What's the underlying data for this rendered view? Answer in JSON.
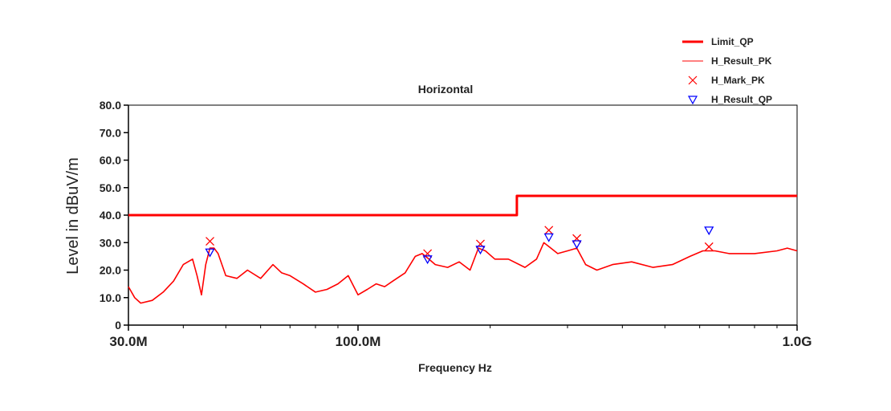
{
  "chart_data": {
    "type": "line",
    "title": "Horizontal",
    "xlabel": "Frequency Hz",
    "ylabel": "Level in dBuV/m",
    "xscale": "log",
    "xlim": [
      30000000,
      1000000000
    ],
    "ylim": [
      0,
      80
    ],
    "grid": true,
    "legend_position": "top-right",
    "x_tick_labels": [
      {
        "value": 30000000,
        "label": "30.0M"
      },
      {
        "value": 100000000,
        "label": "100.0M"
      },
      {
        "value": 1000000000,
        "label": "1.0G"
      }
    ],
    "y_tick_labels": [
      "0",
      "10.0",
      "20.0",
      "30.0",
      "40.0",
      "50.0",
      "60.0",
      "70.0",
      "80.0"
    ],
    "y_ticks": [
      0,
      10,
      20,
      30,
      40,
      50,
      60,
      70,
      80
    ],
    "series": [
      {
        "name": "Limit_QP",
        "style": "thick-line",
        "color": "#ff0000",
        "x": [
          30000000,
          230000000,
          230000000,
          1000000000
        ],
        "y": [
          40,
          40,
          47,
          47
        ]
      },
      {
        "name": "H_Result_PK",
        "style": "thin-line",
        "color": "#ff0000",
        "x": [
          30000000,
          31000000,
          32000000,
          34000000,
          36000000,
          38000000,
          40000000,
          42000000,
          43000000,
          44000000,
          45000000,
          46000000,
          47000000,
          48000000,
          50000000,
          53000000,
          56000000,
          60000000,
          64000000,
          67000000,
          70000000,
          75000000,
          80000000,
          85000000,
          90000000,
          95000000,
          100000000,
          105000000,
          110000000,
          115000000,
          120000000,
          128000000,
          135000000,
          140000000,
          145000000,
          150000000,
          160000000,
          170000000,
          180000000,
          188000000,
          195000000,
          205000000,
          220000000,
          240000000,
          255000000,
          265000000,
          275000000,
          285000000,
          300000000,
          315000000,
          330000000,
          350000000,
          380000000,
          420000000,
          470000000,
          520000000,
          570000000,
          610000000,
          650000000,
          700000000,
          800000000,
          900000000,
          950000000,
          1000000000
        ],
        "y": [
          14,
          10,
          8,
          9,
          12,
          16,
          22,
          24,
          18,
          11,
          22,
          28,
          28,
          26,
          18,
          17,
          20,
          17,
          22,
          19,
          18,
          15,
          12,
          13,
          15,
          18,
          11,
          13,
          15,
          14,
          16,
          19,
          25,
          26,
          24,
          22,
          21,
          23,
          20,
          28,
          27,
          24,
          24,
          21,
          24,
          30,
          28,
          26,
          27,
          28,
          22,
          20,
          22,
          23,
          21,
          22,
          25,
          27,
          27,
          26,
          26,
          27,
          28,
          27
        ]
      },
      {
        "name": "H_Mark_PK",
        "style": "x-marker",
        "color": "#ff0000",
        "x": [
          46000000,
          144000000,
          190000000,
          272000000,
          315000000,
          630000000
        ],
        "y": [
          30.5,
          26,
          29.5,
          34.5,
          31.5,
          28.5
        ]
      },
      {
        "name": "H_Result_QP",
        "style": "triangle-marker",
        "color": "#0000ff",
        "x": [
          46000000,
          144000000,
          190000000,
          272000000,
          315000000,
          630000000
        ],
        "y": [
          26.5,
          24,
          27.5,
          32,
          29.5,
          34.5
        ]
      }
    ]
  }
}
